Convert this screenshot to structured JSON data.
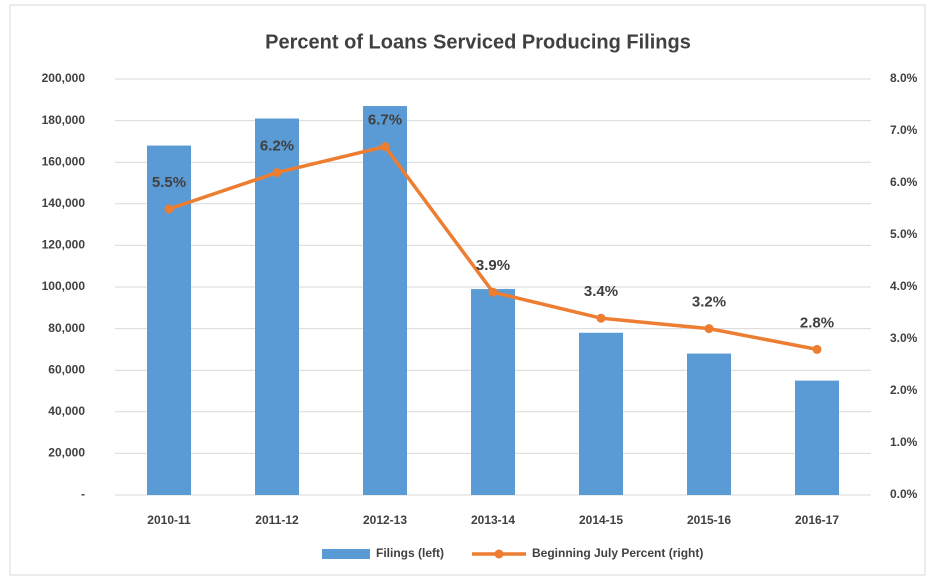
{
  "chart_data": {
    "type": "bar-line",
    "title": "Percent of Loans Serviced Producing Filings",
    "categories": [
      "2010-11",
      "2011-12",
      "2012-13",
      "2013-14",
      "2014-15",
      "2015-16",
      "2016-17"
    ],
    "series": [
      {
        "name": "Filings (left)",
        "color": "#5b9bd5",
        "type": "bar",
        "axis": "y",
        "values": [
          168000,
          181000,
          187000,
          99000,
          78000,
          68000,
          55000
        ]
      },
      {
        "name": "Beginning July Percent (right)",
        "color": "#ed7d31",
        "type": "line",
        "axis": "y2",
        "values": [
          5.5,
          6.2,
          6.7,
          3.9,
          3.4,
          3.2,
          2.8
        ],
        "value_labels": [
          "5.5%",
          "6.2%",
          "6.7%",
          "3.9%",
          "3.4%",
          "3.2%",
          "2.8%"
        ]
      }
    ],
    "ylim": [
      0,
      200000
    ],
    "yticks": [
      {
        "value": 0,
        "label": "-"
      },
      {
        "value": 20000,
        "label": "20,000"
      },
      {
        "value": 40000,
        "label": "40,000"
      },
      {
        "value": 60000,
        "label": "60,000"
      },
      {
        "value": 80000,
        "label": "80,000"
      },
      {
        "value": 100000,
        "label": "100,000"
      },
      {
        "value": 120000,
        "label": "120,000"
      },
      {
        "value": 140000,
        "label": "140,000"
      },
      {
        "value": 160000,
        "label": "160,000"
      },
      {
        "value": 180000,
        "label": "180,000"
      },
      {
        "value": 200000,
        "label": "200,000"
      }
    ],
    "y2lim": [
      0,
      8
    ],
    "y2ticks": [
      {
        "value": 0,
        "label": "0.0%"
      },
      {
        "value": 1,
        "label": "1.0%"
      },
      {
        "value": 2,
        "label": "2.0%"
      },
      {
        "value": 3,
        "label": "3.0%"
      },
      {
        "value": 4,
        "label": "4.0%"
      },
      {
        "value": 5,
        "label": "5.0%"
      },
      {
        "value": 6,
        "label": "6.0%"
      },
      {
        "value": 7,
        "label": "7.0%"
      },
      {
        "value": 8,
        "label": "8.0%"
      }
    ],
    "grid": true,
    "legend": "bottom"
  }
}
